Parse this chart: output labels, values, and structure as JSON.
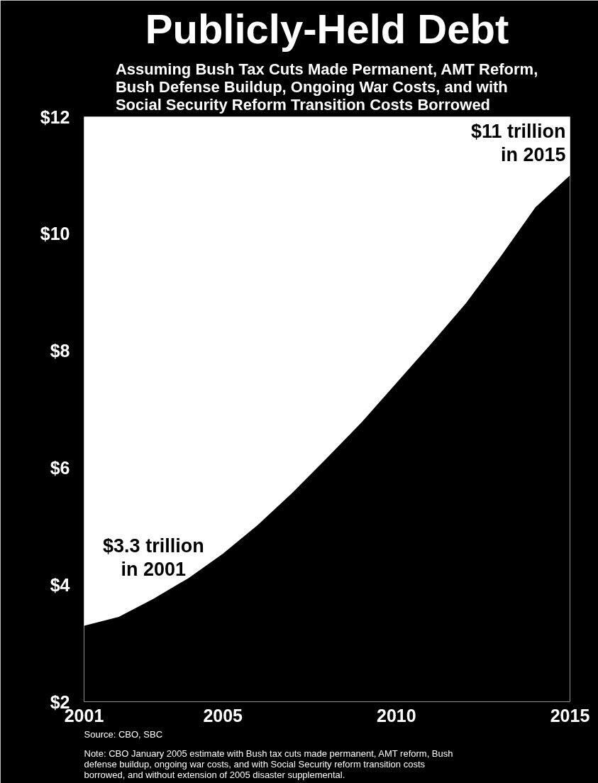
{
  "chart_data": {
    "type": "area",
    "title": "Publicly-Held Debt",
    "subtitle": "Assuming Bush Tax Cuts Made Permanent, AMT Reform, Bush Defense Buildup, Ongoing War Costs, and with Social Security Reform Transition Costs Borrowed",
    "x": [
      2001,
      2002,
      2003,
      2004,
      2005,
      2006,
      2007,
      2008,
      2009,
      2010,
      2011,
      2012,
      2013,
      2014,
      2015
    ],
    "series": [
      {
        "color": "#000000",
        "values": [
          3.3,
          3.45,
          3.76,
          4.11,
          4.53,
          5.02,
          5.57,
          6.17,
          6.78,
          7.45,
          8.12,
          8.81,
          9.61,
          10.45,
          11.0
        ]
      }
    ],
    "xlim": [
      2001,
      2015
    ],
    "xticks": [
      2001,
      2005,
      2010,
      2015
    ],
    "ylim": [
      2,
      12
    ],
    "yticks": [
      {
        "value": 2,
        "label": "$2"
      },
      {
        "value": 4,
        "label": "$4"
      },
      {
        "value": 6,
        "label": "$6"
      },
      {
        "value": 8,
        "label": "$8"
      },
      {
        "value": 10,
        "label": "$10"
      },
      {
        "value": 12,
        "label": "$12"
      }
    ],
    "grid": false,
    "annotations": [
      {
        "text": "$3.3 trillion in 2001",
        "x": 2003,
        "y": 3.76
      },
      {
        "text": "$11 trillion in 2015",
        "x": 2015,
        "y": 11
      },
      "Source:  CBO, SBC",
      "Note:  CBO January 2005 estimate with Bush tax cuts made permanent, AMT reform, Bush defense buildup, ongoing war costs, and with Social Security reform transition costs borrowed, and without extension of 2005 disaster supplemental."
    ]
  }
}
